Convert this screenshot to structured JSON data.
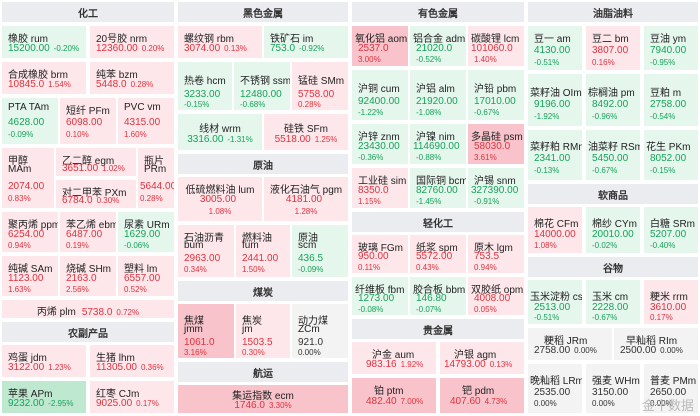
{
  "sections": {
    "chemical": "化工",
    "ferrous": "黑色金属",
    "crude": "原油",
    "coal": "煤炭",
    "shipping": "航运",
    "agri_products": "农副产品",
    "nonferrous": "有色金属",
    "light_industry": "轻化工",
    "precious": "贵金属",
    "oilseeds": "油脂油料",
    "softs": "软商品",
    "grains": "谷物"
  },
  "watermark": "金十数据",
  "tiles": {
    "ru": {
      "name": "橡胶 rum",
      "price": "15200.00",
      "pct": "-0.20%"
    },
    "nr": {
      "name": "20号胶 nrm",
      "price": "12360.00",
      "pct": "0.20%"
    },
    "br": {
      "name": "合成橡胶 brm",
      "price": "10845.0",
      "pct": "1.54%"
    },
    "bz": {
      "name": "纯苯 bzm",
      "price": "5448.0",
      "pct": "0.28%"
    },
    "ta": {
      "name": "PTA TAm",
      "price": "4628.00",
      "pct": "-0.09%"
    },
    "pf": {
      "name": "短纤 PFm",
      "price": "6098.00",
      "pct": "0.10%"
    },
    "v": {
      "name": "PVC vm",
      "price": "4315.00",
      "pct": "1.60%"
    },
    "ma": {
      "name": "甲醇",
      "name2": "MAm",
      "price": "2074.00",
      "pct": "0.83%"
    },
    "eg": {
      "name": "乙二醇 egm",
      "price": "3651.00",
      "pct": "1.02%"
    },
    "px": {
      "name": "对二甲苯 PXm",
      "price": "6784.0",
      "pct": "0.30%"
    },
    "pr": {
      "name": "瓶片",
      "name2": "PRm",
      "price": "5644.00",
      "pct": "0.28%"
    },
    "pp": {
      "name": "聚丙烯 ppm",
      "price": "6254.00",
      "pct": "0.94%"
    },
    "eb": {
      "name": "苯乙烯 ebm",
      "price": "6487.00",
      "pct": "0.19%"
    },
    "ur": {
      "name": "尿素 URm",
      "price": "1629.00",
      "pct": "-0.06%"
    },
    "sa": {
      "name": "纯碱 SAm",
      "price": "1123.00",
      "pct": "1.63%"
    },
    "sh": {
      "name": "烧碱 SHm",
      "price": "2163.0",
      "pct": "2.56%"
    },
    "l": {
      "name": "塑料 lm",
      "price": "6557.00",
      "pct": "0.52%"
    },
    "pl": {
      "name": "丙烯 plm",
      "price": "5738.0",
      "pct": "0.72%"
    },
    "rb": {
      "name": "螺纹钢 rbm",
      "price": "3074.00",
      "pct": "0.13%"
    },
    "im": {
      "name": "铁矿石 im",
      "price": "753.0",
      "pct": "-0.92%"
    },
    "hc": {
      "name": "热卷 hcm",
      "price": "3233.00",
      "pct": "-0.15%"
    },
    "ss": {
      "name": "不锈钢 ssm",
      "price": "12480.00",
      "pct": "-0.68%"
    },
    "sm": {
      "name": "锰硅 SMm",
      "price": "5758.00",
      "pct": "0.28%"
    },
    "wr": {
      "name": "线材 wrm",
      "price": "3316.00",
      "pct": "-1.31%"
    },
    "sf": {
      "name": "硅铁 SFm",
      "price": "5518.00",
      "pct": "1.25%"
    },
    "lu": {
      "name": "低硫燃料油 lum",
      "price": "3005.00",
      "pct": "1.08%"
    },
    "pg": {
      "name": "液化石油气 pgm",
      "price": "4181.00",
      "pct": "1.28%"
    },
    "bu": {
      "name": "石油沥青",
      "name2": "bum",
      "price": "2963.00",
      "pct": "0.34%"
    },
    "fu": {
      "name": "燃料油",
      "name2": "fum",
      "price": "2441.00",
      "pct": "1.50%"
    },
    "sc": {
      "name": "原油",
      "name2": "scm",
      "price": "436.5",
      "pct": "-0.09%"
    },
    "jm": {
      "name": "焦煤",
      "name2": "jmm",
      "price": "1061.0",
      "pct": "3.16%"
    },
    "j": {
      "name": "焦炭",
      "name2": "jm",
      "price": "1503.5",
      "pct": "0.30%"
    },
    "zc": {
      "name": "动力煤",
      "name2": "ZCm",
      "price": "921.0",
      "pct": "0.00%"
    },
    "ec": {
      "name": "集运指数 ecm",
      "price": "1746.0",
      "pct": "3.30%"
    },
    "jd": {
      "name": "鸡蛋 jdm",
      "price": "3122.00",
      "pct": "1.23%"
    },
    "lh": {
      "name": "生猪 lhm",
      "price": "11305.00",
      "pct": "0.36%"
    },
    "ap": {
      "name": "苹果 APm",
      "price": "9232.00",
      "pct": "-2.95%"
    },
    "cj": {
      "name": "红枣 CJm",
      "price": "9025.00",
      "pct": "0.17%"
    },
    "ao": {
      "name": "氧化铝 aom",
      "price": "2537.0",
      "pct": "3.00%"
    },
    "ad": {
      "name": "铝合金 adm",
      "price": "21020.0",
      "pct": "-0.52%"
    },
    "lc": {
      "name": "碳酸锂 lcm",
      "price": "101060.0",
      "pct": "1.40%"
    },
    "cu": {
      "name": "沪铜 cum",
      "price": "92400.00",
      "pct": "-1.22%"
    },
    "al": {
      "name": "沪铝 alm",
      "price": "21920.00",
      "pct": "-1.08%"
    },
    "pb": {
      "name": "沪铅 pbm",
      "price": "17010.00",
      "pct": "-0.67%"
    },
    "zn": {
      "name": "沪锌 znm",
      "price": "23430.00",
      "pct": "-0.36%"
    },
    "ni": {
      "name": "沪镍 nim",
      "price": "114690.00",
      "pct": "-0.88%"
    },
    "ps": {
      "name": "多晶硅 psm",
      "price": "58030.0",
      "pct": "3.61%"
    },
    "si": {
      "name": "工业硅 sim",
      "price": "8350.0",
      "pct": "1.15%"
    },
    "bc": {
      "name": "国际铜 bcm",
      "price": "82760.00",
      "pct": "-1.45%"
    },
    "sn": {
      "name": "沪锡 snm",
      "price": "327390.00",
      "pct": "-0.91%"
    },
    "fg": {
      "name": "玻璃 FGm",
      "price": "950.00",
      "pct": "0.11%"
    },
    "sp": {
      "name": "纸浆 spm",
      "price": "5572.00",
      "pct": "0.43%"
    },
    "lg": {
      "name": "原木 lgm",
      "price": "753.5",
      "pct": "0.94%"
    },
    "fb": {
      "name": "纤维板 fbm",
      "price": "1273.00",
      "pct": "-0.08%"
    },
    "bb": {
      "name": "胶合板 bbm",
      "price": "146.80",
      "pct": "-0.07%"
    },
    "op": {
      "name": "双胶纸 opm",
      "price": "4008.00",
      "pct": "0.05%"
    },
    "au": {
      "name": "沪金 aum",
      "price": "983.16",
      "pct": "1.92%"
    },
    "ag": {
      "name": "沪银 agm",
      "price": "14793.00",
      "pct": "0.13%"
    },
    "pt": {
      "name": "铂 ptm",
      "price": "482.40",
      "pct": "7.00%"
    },
    "pd": {
      "name": "钯 pdm",
      "price": "407.60",
      "pct": "4.73%"
    },
    "a": {
      "name": "豆一 am",
      "price": "4130.00",
      "pct": "-0.51%"
    },
    "b": {
      "name": "豆二 bm",
      "price": "3807.00",
      "pct": "0.16%"
    },
    "y": {
      "name": "豆油 ym",
      "price": "7940.00",
      "pct": "-0.95%"
    },
    "oi": {
      "name": "菜籽油 OIm",
      "price": "9196.00",
      "pct": "-1.92%"
    },
    "p": {
      "name": "棕榈油 pm",
      "price": "8492.00",
      "pct": "-0.96%"
    },
    "m": {
      "name": "豆粕 m",
      "price": "2758.00",
      "pct": "-0.54%"
    },
    "rm": {
      "name": "菜籽粕 RMm",
      "price": "2341.00",
      "pct": "-0.13%"
    },
    "rs": {
      "name": "油菜籽 RSm",
      "price": "5450.00",
      "pct": "-0.67%"
    },
    "pk": {
      "name": "花生 PKm",
      "price": "8052.00",
      "pct": "-0.15%"
    },
    "cf": {
      "name": "棉花 CFm",
      "price": "14000.00",
      "pct": "1.08%"
    },
    "cy": {
      "name": "棉纱 CYm",
      "price": "20010.00",
      "pct": "-0.02%"
    },
    "sr": {
      "name": "白糖 SRm",
      "price": "5207.00",
      "pct": "-0.40%"
    },
    "cs": {
      "name": "玉米淀粉 csm",
      "price": "2513.00",
      "pct": "-0.51%"
    },
    "c": {
      "name": "玉米 cm",
      "price": "2228.00",
      "pct": "-0.67%"
    },
    "rr": {
      "name": "粳米 rrm",
      "price": "3610.00",
      "pct": "0.17%"
    },
    "jr": {
      "name": "粳稻 JRm",
      "price": "2758.00",
      "pct": "0.00%"
    },
    "ri": {
      "name": "早籼稻 RIm",
      "price": "2500.00",
      "pct": "0.00%"
    },
    "lr": {
      "name": "晚籼稻 LRm",
      "price": "2535.00",
      "pct": "0.00%"
    },
    "wh": {
      "name": "强麦 WHm",
      "price": "3150.00",
      "pct": "0.00%"
    },
    "pm": {
      "name": "普麦 PMm",
      "price": "2650.00",
      "pct": "0.00%"
    }
  }
}
